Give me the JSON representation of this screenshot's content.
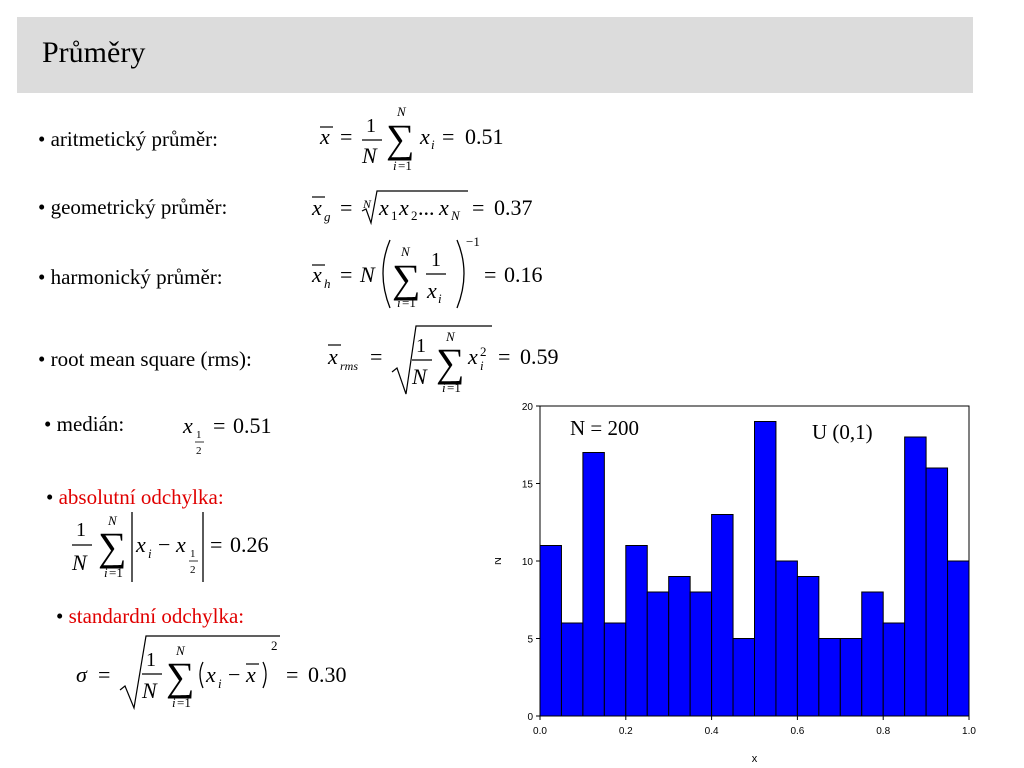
{
  "title": "Průměry",
  "items": {
    "arith": {
      "bullet": "•",
      "label": "aritmetický průměr:",
      "result": "0.51"
    },
    "geom": {
      "bullet": "•",
      "label": "geometrický průměr:",
      "result": "0.37"
    },
    "harm": {
      "bullet": "•",
      "label": "harmonický průměr:",
      "result": "0.16"
    },
    "rms": {
      "bullet": "•",
      "label": "root mean square (rms):",
      "result": "0.59"
    },
    "median": {
      "bullet": "•",
      "label": "medián:",
      "result": "0.51"
    },
    "absdev": {
      "bullet": "•",
      "label": "absolutní odchylka:",
      "result": "0.26"
    },
    "stddev": {
      "bullet": "•",
      "label": "standardní odchylka:",
      "result": "0.30"
    }
  },
  "colors": {
    "header_bg": "#dcdcdc",
    "accent_red": "#e00000",
    "bar_fill": "#0000ff"
  },
  "chart_data": {
    "type": "bar",
    "bin_edges": [
      0.0,
      0.05,
      0.1,
      0.15,
      0.2,
      0.25,
      0.3,
      0.35,
      0.4,
      0.45,
      0.5,
      0.55,
      0.6,
      0.65,
      0.7,
      0.75,
      0.8,
      0.85,
      0.9,
      0.95,
      1.0
    ],
    "values": [
      11,
      6,
      17,
      6,
      11,
      8,
      9,
      8,
      13,
      5,
      19,
      10,
      9,
      5,
      5,
      8,
      6,
      18,
      16,
      10
    ],
    "xlim": [
      0.0,
      1.0
    ],
    "ylim": [
      0,
      20
    ],
    "xticks": [
      "0.0",
      "0.2",
      "0.4",
      "0.6",
      "0.8",
      "1.0"
    ],
    "yticks": [
      "0",
      "5",
      "10",
      "15",
      "20"
    ],
    "xlabel": "x",
    "ylabel": "N",
    "annotations": [
      "N = 200",
      "U (0,1)"
    ],
    "grid": false
  }
}
